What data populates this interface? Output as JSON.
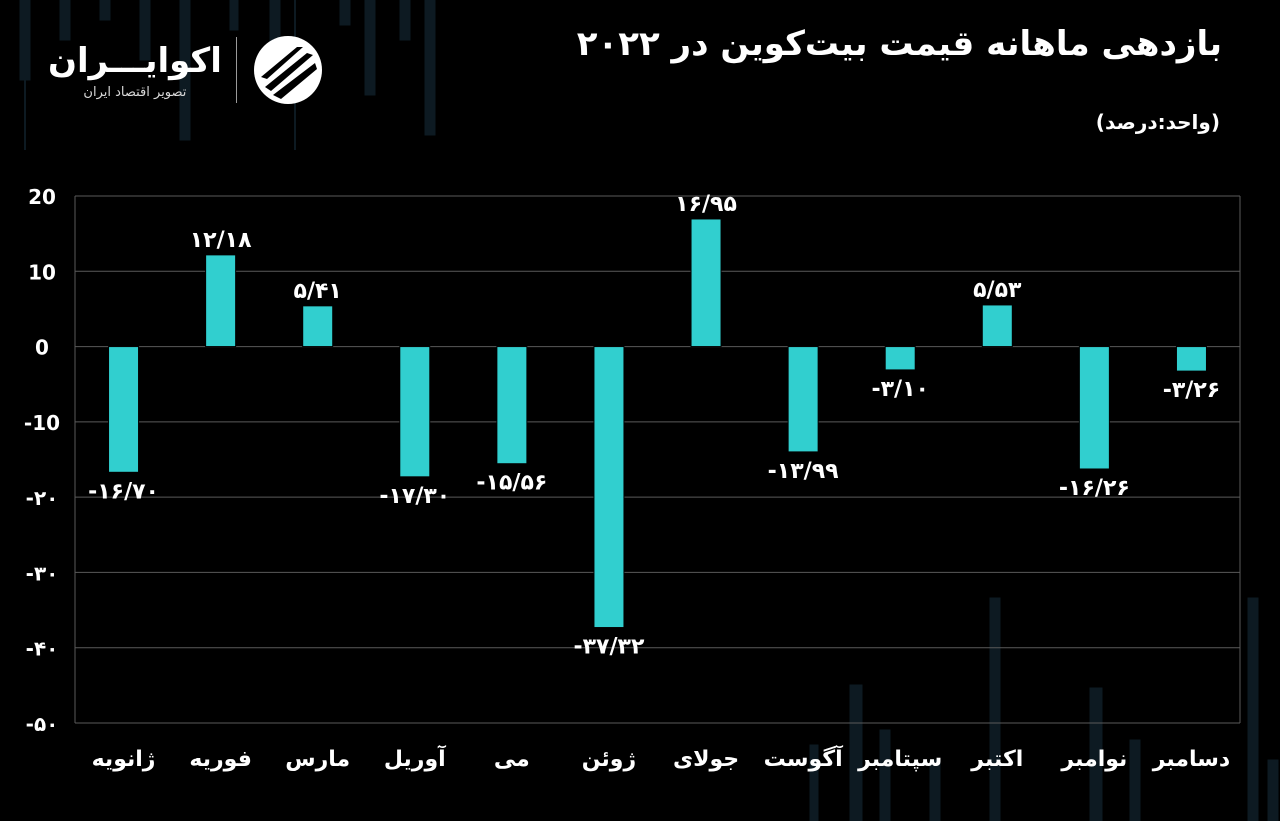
{
  "brand": {
    "name": "اکوایـــران",
    "tagline": "تصویر اقتصاد ایران"
  },
  "title": "بازدهی ماهانه قیمت بیت‌کوین در ۲۰۲۲",
  "unit_label": "(واحد:درصد)",
  "colors": {
    "background": "#000000",
    "bar": "#31cfcf",
    "grid": "#5a5a5a",
    "text": "#ffffff"
  },
  "chart_data": {
    "type": "bar",
    "categories": [
      "ژانویه",
      "فوریه",
      "مارس",
      "آوریل",
      "می",
      "ژوئن",
      "جولای",
      "آگوست",
      "سپتامبر",
      "اکتبر",
      "نوامبر",
      "دسامبر"
    ],
    "values": [
      -16.7,
      12.18,
      5.41,
      -17.3,
      -15.56,
      -37.32,
      16.95,
      -13.99,
      -3.1,
      5.53,
      -16.26,
      -3.26
    ],
    "value_labels": [
      "-۱۶/۷۰",
      "۱۲/۱۸",
      "۵/۴۱",
      "-۱۷/۳۰",
      "-۱۵/۵۶",
      "-۳۷/۳۲",
      "۱۶/۹۵",
      "-۱۳/۹۹",
      "-۳/۱۰",
      "۵/۵۳",
      "-۱۶/۲۶",
      "-۳/۲۶"
    ],
    "y_ticks": [
      20,
      10,
      0,
      -10,
      -20,
      -30,
      -40,
      -50
    ],
    "y_tick_labels": [
      "20",
      "10",
      "0",
      "-10",
      "-۲۰",
      "-۳۰",
      "-۴۰",
      "-۵۰"
    ],
    "ylim": [
      -50,
      20
    ],
    "grid": true,
    "title": "بازدهی ماهانه قیمت بیت‌کوین در ۲۰۲۲",
    "ylabel": "(واحد:درصد)",
    "xlabel": ""
  }
}
